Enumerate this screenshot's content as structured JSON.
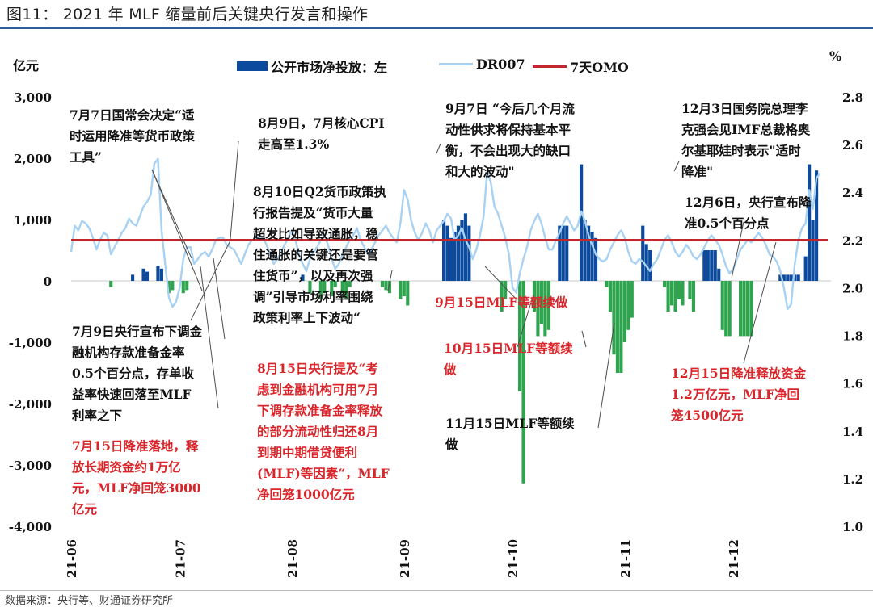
{
  "figure_title": "图11：  2021 年 MLF 缩量前后关键央行发言和操作",
  "source": "数据来源：央行等、财通证券研究所",
  "left_unit": "亿元",
  "right_unit": "%",
  "legend": {
    "bars": "公开市场净投放：左",
    "line": "DR007",
    "omo": "7天OMO"
  },
  "colors": {
    "bars_positive": "#0b4a9c",
    "bars_negative": "#2ea44f",
    "dr007": "#a8d1f2",
    "omo": "#c1272d",
    "annotation_black": "#111111",
    "annotation_red": "#d9262b"
  },
  "annotations": [
    {
      "id": "a1",
      "color": "black",
      "text": "7月7日国常会决定“适\n时运用降准等货币政策\n工具”"
    },
    {
      "id": "a2",
      "color": "black",
      "text": "8月9日，7月核心CPI\n走高至1.3%"
    },
    {
      "id": "a3",
      "color": "black",
      "text": "9月7日 “今后几个月流\n动性供求将保持基本平\n衡，不会出现大的缺口\n和大的波动\""
    },
    {
      "id": "a4",
      "color": "black",
      "text": "12月3日国务院总理李\n克强会见IMF总裁格奥\n尔基耶娃时表示\"适时\n降准\""
    },
    {
      "id": "a5",
      "color": "black",
      "text": "8月10日Q2货币政策执\n行报告提及“货币大量\n超发比如导致通胀，稳\n住通胀的关键还是要管\n住货币”，以及再次强\n调”引导市场利率围绕\n政策利率上下波动“"
    },
    {
      "id": "a6",
      "color": "black",
      "text": "12月6日，央行宣布降\n准0.5个百分点"
    },
    {
      "id": "a7",
      "color": "black",
      "text": "7月9日央行宣布下调金\n融机构存款准备金率\n0.5个百分点，存单收\n益率快速回落至MLF\n利率之下"
    },
    {
      "id": "a8",
      "color": "red",
      "text": "9月15日MLF等额续做"
    },
    {
      "id": "a9",
      "color": "red",
      "text": "10月15日MLF等额续\n做"
    },
    {
      "id": "a10",
      "color": "red",
      "text": "8月15日央行提及“考\n虑到金融机构可用7月\n下调存款准备金率释放\n的部分流动性归还8月\n到期中期借贷便利\n(MLF)等因素“，MLF\n净回笼1000亿元"
    },
    {
      "id": "a11",
      "color": "red",
      "text": "12月15日降准释放资金\n1.2万亿元，MLF净回\n笼4500亿元"
    },
    {
      "id": "a12",
      "color": "red",
      "text": "7月15日降准落地，释\n放长期资金约1万亿\n元，MLF净回笼3000\n亿元"
    },
    {
      "id": "a13",
      "color": "black",
      "text": "11月15日MLF等额续\n做"
    }
  ],
  "chart_data": {
    "type": "bar+line",
    "x_tick_labels": [
      "21-06",
      "21-07",
      "21-08",
      "21-09",
      "21-10",
      "21-11",
      "21-12"
    ],
    "x_tick_days": [
      0,
      30,
      61,
      92,
      122,
      153,
      183
    ],
    "x_domain_days": [
      0,
      210
    ],
    "left_axis": {
      "label": "亿元",
      "ticks": [
        3000,
        2000,
        1000,
        0,
        -1000,
        -2000,
        -3000,
        -4000
      ],
      "tick_labels": [
        "3,000",
        "2,000",
        "1,000",
        "0",
        "-1,000",
        "-2,000",
        "-3,000",
        "-4,000"
      ],
      "ylim": [
        -4000,
        3000
      ]
    },
    "right_axis": {
      "label": "%",
      "ticks": [
        2.8,
        2.6,
        2.4,
        2.2,
        2.0,
        1.8,
        1.6,
        1.4,
        1.2,
        1.0
      ],
      "tick_labels": [
        "2.8",
        "2.6",
        "2.4",
        "2.2",
        "2.0",
        "1.8",
        "1.6",
        "1.4",
        "1.2",
        "1.0"
      ],
      "ylim": [
        1.0,
        2.8
      ]
    },
    "omo_rate": 2.2,
    "bar_series": {
      "name": "公开市场净投放：左",
      "points": [
        [
          11,
          -100
        ],
        [
          17,
          100
        ],
        [
          20,
          200
        ],
        [
          21,
          150
        ],
        [
          24,
          250
        ],
        [
          25,
          200
        ],
        [
          27,
          -200
        ],
        [
          28,
          -150
        ],
        [
          31,
          -200
        ],
        [
          32,
          -150
        ],
        [
          64,
          100
        ],
        [
          66,
          -200
        ],
        [
          69,
          -300
        ],
        [
          70,
          -200
        ],
        [
          72,
          -250
        ],
        [
          73,
          -100
        ],
        [
          75,
          -200
        ],
        [
          76,
          -300
        ],
        [
          77,
          -100
        ],
        [
          86,
          -100
        ],
        [
          87,
          -150
        ],
        [
          88,
          -200
        ],
        [
          91,
          -300
        ],
        [
          92,
          -250
        ],
        [
          93,
          -400
        ],
        [
          103,
          1000
        ],
        [
          104,
          900
        ],
        [
          105,
          700
        ],
        [
          106,
          800
        ],
        [
          107,
          900
        ],
        [
          108,
          1000
        ],
        [
          109,
          1100
        ],
        [
          110,
          900
        ],
        [
          119,
          -500
        ],
        [
          120,
          -300
        ],
        [
          124,
          -1800
        ],
        [
          125,
          -3300
        ],
        [
          128,
          -500
        ],
        [
          129,
          -900
        ],
        [
          130,
          -700
        ],
        [
          131,
          -900
        ],
        [
          132,
          -800
        ],
        [
          135,
          900
        ],
        [
          136,
          900
        ],
        [
          137,
          900
        ],
        [
          141,
          1900
        ],
        [
          142,
          1000
        ],
        [
          143,
          900
        ],
        [
          144,
          800
        ],
        [
          145,
          700
        ],
        [
          148,
          -100
        ],
        [
          149,
          -500
        ],
        [
          150,
          -1200
        ],
        [
          151,
          -1500
        ],
        [
          152,
          -1500
        ],
        [
          153,
          -1000
        ],
        [
          154,
          -800
        ],
        [
          155,
          -600
        ],
        [
          158,
          900
        ],
        [
          159,
          600
        ],
        [
          160,
          500
        ],
        [
          164,
          -100
        ],
        [
          165,
          -500
        ],
        [
          166,
          -400
        ],
        [
          167,
          -500
        ],
        [
          168,
          -300
        ],
        [
          169,
          -400
        ],
        [
          171,
          -300
        ],
        [
          172,
          -500
        ],
        [
          175,
          500
        ],
        [
          176,
          500
        ],
        [
          177,
          500
        ],
        [
          178,
          500
        ],
        [
          179,
          200
        ],
        [
          180,
          -800
        ],
        [
          181,
          -900
        ],
        [
          182,
          -900
        ],
        [
          185,
          -900
        ],
        [
          186,
          -900
        ],
        [
          187,
          -900
        ],
        [
          188,
          -900
        ],
        [
          196,
          100
        ],
        [
          197,
          100
        ],
        [
          198,
          100
        ],
        [
          199,
          100
        ],
        [
          200,
          100
        ],
        [
          201,
          100
        ],
        [
          203,
          400
        ],
        [
          204,
          1900
        ],
        [
          205,
          1000
        ],
        [
          206,
          1800
        ]
      ]
    },
    "line_series": {
      "name": "DR007",
      "points": [
        [
          0,
          2.15
        ],
        [
          1,
          2.26
        ],
        [
          2,
          2.24
        ],
        [
          3,
          2.28
        ],
        [
          4,
          2.27
        ],
        [
          5,
          2.25
        ],
        [
          6,
          2.21
        ],
        [
          7,
          2.16
        ],
        [
          8,
          2.2
        ],
        [
          9,
          2.23
        ],
        [
          10,
          2.22
        ],
        [
          11,
          2.14
        ],
        [
          12,
          2.17
        ],
        [
          13,
          2.2
        ],
        [
          14,
          2.23
        ],
        [
          15,
          2.25
        ],
        [
          16,
          2.29
        ],
        [
          17,
          2.27
        ],
        [
          18,
          2.26
        ],
        [
          19,
          2.3
        ],
        [
          20,
          2.34
        ],
        [
          21,
          2.36
        ],
        [
          22,
          2.39
        ],
        [
          23,
          2.52
        ],
        [
          24,
          2.54
        ],
        [
          25,
          2.24
        ],
        [
          26,
          2.1
        ],
        [
          27,
          1.96
        ],
        [
          28,
          1.92
        ],
        [
          29,
          1.94
        ],
        [
          30,
          2.0
        ],
        [
          31,
          2.12
        ],
        [
          32,
          2.17
        ],
        [
          33,
          2.17
        ],
        [
          34,
          2.1
        ],
        [
          35,
          2.12
        ],
        [
          36,
          2.14
        ],
        [
          37,
          2.15
        ],
        [
          38,
          2.13
        ],
        [
          39,
          2.16
        ],
        [
          40,
          2.2
        ],
        [
          41,
          2.21
        ],
        [
          42,
          2.21
        ],
        [
          43,
          2.18
        ],
        [
          44,
          2.17
        ],
        [
          45,
          2.16
        ],
        [
          46,
          2.13
        ],
        [
          47,
          2.1
        ],
        [
          48,
          2.14
        ],
        [
          49,
          2.18
        ],
        [
          50,
          2.2
        ],
        [
          51,
          2.2
        ],
        [
          52,
          2.22
        ],
        [
          53,
          2.21
        ],
        [
          54,
          2.18
        ],
        [
          55,
          2.14
        ],
        [
          56,
          2.1
        ],
        [
          57,
          2.12
        ],
        [
          58,
          2.15
        ],
        [
          59,
          2.18
        ],
        [
          60,
          2.21
        ],
        [
          61,
          2.24
        ],
        [
          62,
          2.2
        ],
        [
          63,
          2.14
        ],
        [
          64,
          2.1
        ],
        [
          65,
          2.07
        ],
        [
          66,
          2.12
        ],
        [
          67,
          2.15
        ],
        [
          68,
          2.17
        ],
        [
          69,
          2.2
        ],
        [
          70,
          2.22
        ],
        [
          71,
          2.18
        ],
        [
          72,
          2.12
        ],
        [
          73,
          2.08
        ],
        [
          74,
          2.1
        ],
        [
          75,
          2.14
        ],
        [
          76,
          2.17
        ],
        [
          77,
          2.2
        ],
        [
          78,
          2.22
        ],
        [
          79,
          2.25
        ],
        [
          80,
          2.2
        ],
        [
          81,
          2.17
        ],
        [
          82,
          2.14
        ],
        [
          83,
          2.16
        ],
        [
          84,
          2.19
        ],
        [
          85,
          2.22
        ],
        [
          86,
          2.24
        ],
        [
          87,
          2.26
        ],
        [
          88,
          2.23
        ],
        [
          89,
          2.21
        ],
        [
          90,
          2.19
        ],
        [
          91,
          2.27
        ],
        [
          92,
          2.41
        ],
        [
          93,
          2.37
        ],
        [
          94,
          2.28
        ],
        [
          95,
          2.23
        ],
        [
          96,
          2.2
        ],
        [
          97,
          2.23
        ],
        [
          98,
          2.27
        ],
        [
          99,
          2.24
        ],
        [
          100,
          2.19
        ],
        [
          101,
          2.24
        ],
        [
          102,
          2.26
        ],
        [
          103,
          2.28
        ],
        [
          104,
          2.31
        ],
        [
          105,
          2.29
        ],
        [
          106,
          2.2
        ],
        [
          107,
          2.22
        ],
        [
          108,
          2.25
        ],
        [
          109,
          2.2
        ],
        [
          110,
          2.17
        ],
        [
          111,
          2.12
        ],
        [
          112,
          2.16
        ],
        [
          113,
          2.22
        ],
        [
          114,
          2.3
        ],
        [
          115,
          2.49
        ],
        [
          116,
          2.44
        ],
        [
          117,
          2.34
        ],
        [
          118,
          2.31
        ],
        [
          119,
          2.26
        ],
        [
          120,
          2.21
        ],
        [
          121,
          2.14
        ],
        [
          122,
          2.0
        ],
        [
          123,
          1.98
        ],
        [
          124,
          2.06
        ],
        [
          125,
          2.12
        ],
        [
          126,
          2.17
        ],
        [
          127,
          2.24
        ],
        [
          128,
          2.28
        ],
        [
          129,
          2.31
        ],
        [
          130,
          2.27
        ],
        [
          131,
          2.21
        ],
        [
          132,
          2.16
        ],
        [
          133,
          2.16
        ],
        [
          134,
          2.2
        ],
        [
          135,
          2.23
        ],
        [
          136,
          2.27
        ],
        [
          137,
          2.3
        ],
        [
          138,
          2.27
        ],
        [
          139,
          2.24
        ],
        [
          140,
          2.26
        ],
        [
          141,
          2.32
        ],
        [
          142,
          2.28
        ],
        [
          143,
          2.22
        ],
        [
          144,
          2.18
        ],
        [
          145,
          2.14
        ],
        [
          146,
          2.12
        ],
        [
          147,
          2.11
        ],
        [
          148,
          2.12
        ],
        [
          149,
          2.16
        ],
        [
          150,
          2.19
        ],
        [
          151,
          2.22
        ],
        [
          152,
          2.24
        ],
        [
          153,
          2.21
        ],
        [
          154,
          2.15
        ],
        [
          155,
          2.11
        ],
        [
          156,
          2.1
        ],
        [
          157,
          2.12
        ],
        [
          158,
          2.11
        ],
        [
          159,
          2.09
        ],
        [
          160,
          2.07
        ],
        [
          161,
          2.1
        ],
        [
          162,
          2.12
        ],
        [
          163,
          2.16
        ],
        [
          164,
          2.2
        ],
        [
          165,
          2.22
        ],
        [
          166,
          2.19
        ],
        [
          167,
          2.15
        ],
        [
          168,
          2.13
        ],
        [
          169,
          2.15
        ],
        [
          170,
          2.18
        ],
        [
          171,
          2.16
        ],
        [
          172,
          2.13
        ],
        [
          173,
          2.12
        ],
        [
          174,
          2.14
        ],
        [
          175,
          2.17
        ],
        [
          176,
          2.2
        ],
        [
          177,
          2.22
        ],
        [
          178,
          2.2
        ],
        [
          179,
          2.18
        ],
        [
          180,
          2.14
        ],
        [
          181,
          2.09
        ],
        [
          182,
          2.06
        ],
        [
          183,
          2.08
        ],
        [
          184,
          2.12
        ],
        [
          185,
          2.16
        ],
        [
          186,
          2.18
        ],
        [
          187,
          2.2
        ],
        [
          188,
          2.19
        ],
        [
          189,
          2.21
        ],
        [
          190,
          2.23
        ],
        [
          191,
          2.21
        ],
        [
          192,
          2.18
        ],
        [
          193,
          2.14
        ],
        [
          194,
          2.13
        ],
        [
          195,
          2.11
        ],
        [
          196,
          2.07
        ],
        [
          197,
          2.0
        ],
        [
          198,
          1.91
        ],
        [
          199,
          1.93
        ],
        [
          200,
          2.1
        ],
        [
          201,
          2.2
        ],
        [
          202,
          2.25
        ],
        [
          203,
          2.27
        ],
        [
          204,
          2.41
        ],
        [
          205,
          2.33
        ],
        [
          206,
          2.46
        ],
        [
          207,
          2.48
        ]
      ]
    }
  }
}
